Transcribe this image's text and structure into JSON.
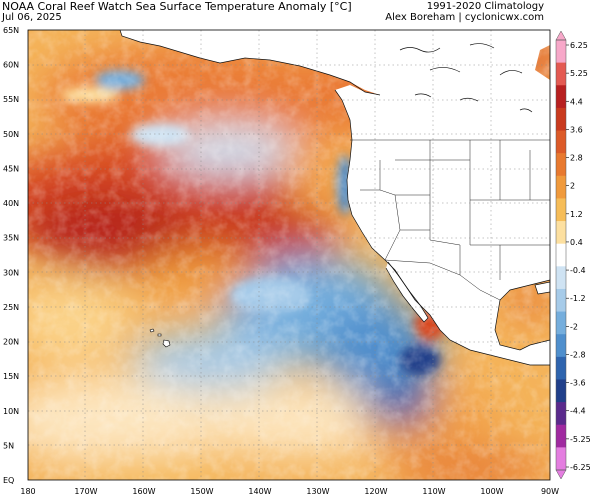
{
  "header": {
    "title": "NOAA Coral Reef Watch Sea Surface Temperature Anomaly [°C]",
    "date": "Jul 06, 2025",
    "climatology": "1991-2020 Climatology",
    "credit": "Alex Boreham | cyclonicwx.com"
  },
  "map": {
    "lat_labels": [
      "65N",
      "60N",
      "55N",
      "50N",
      "45N",
      "40N",
      "35N",
      "30N",
      "25N",
      "20N",
      "15N",
      "10N",
      "5N",
      "EQ"
    ],
    "lon_labels": [
      "180",
      "170W",
      "160W",
      "150W",
      "140W",
      "130W",
      "120W",
      "110W",
      "100W",
      "90W"
    ]
  },
  "colorbar": {
    "ticks": [
      "6.25",
      "5.25",
      "4.4",
      "3.6",
      "2.8",
      "2",
      "1.2",
      "0.4",
      "-0.4",
      "-1.2",
      "-2",
      "-2.8",
      "-3.6",
      "-4.4",
      "-5.25",
      "-6.25"
    ],
    "colors": [
      "#f7a8c9",
      "#e45a52",
      "#b82020",
      "#c93a1e",
      "#dc5a28",
      "#e8792f",
      "#f09a3c",
      "#f6bd58",
      "#fde0a0",
      "#ffffff",
      "#cfe3f3",
      "#a6cbe9",
      "#75aedd",
      "#4f8fcd",
      "#2e64ae",
      "#203f8a",
      "#5a2a8c",
      "#a02aa0",
      "#e47ee0"
    ]
  }
}
